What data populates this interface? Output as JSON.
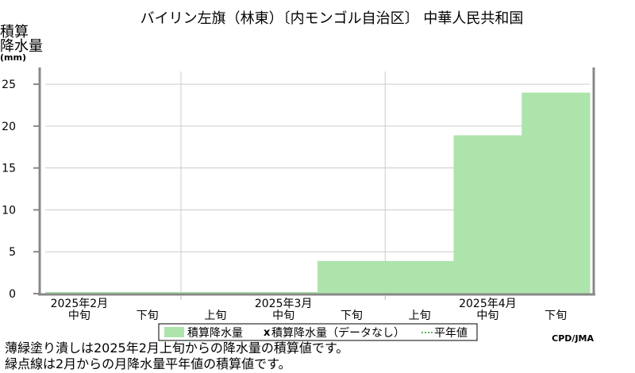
{
  "chart_data": {
    "type": "area",
    "title": "バイリン左旗（林東）〔内モンゴル自治区〕 中華人民共和国",
    "ylabel_lines": [
      "積算",
      "降水量",
      "(mm)"
    ],
    "ylim": [
      0,
      27
    ],
    "yticks": [
      0,
      5,
      10,
      15,
      20,
      25
    ],
    "periods": [
      "2025年2月 中旬",
      "2025年2月 下旬",
      "2025年3月 上旬",
      "2025年3月 中旬",
      "2025年3月 下旬",
      "2025年4月 上旬",
      "2025年4月 中旬",
      "2025年4月 下旬"
    ],
    "month_labels": [
      {
        "label": "2025年2月",
        "slot": 0
      },
      {
        "label": "2025年3月",
        "slot": 3
      },
      {
        "label": "2025年4月",
        "slot": 6
      }
    ],
    "dekad_labels": [
      "中旬",
      "下旬",
      "上旬",
      "中旬",
      "下旬",
      "上旬",
      "中旬",
      "下旬"
    ],
    "series": [
      {
        "name": "積算降水量",
        "values": [
          0.2,
          0.2,
          0.2,
          0.2,
          3.9,
          3.9,
          18.9,
          24.0
        ]
      }
    ],
    "legend": {
      "items": [
        "積算降水量",
        "積算降水量（データなし）",
        "平年値"
      ],
      "placement": "bottom"
    },
    "fill_color": "#ade4ab",
    "credit": "CPD/JMA"
  },
  "notes": [
    "薄緑塗り潰しは2025年2月上旬からの降水量の積算値です。",
    "緑点線は2月からの月降水量平年値の積算値です。"
  ]
}
